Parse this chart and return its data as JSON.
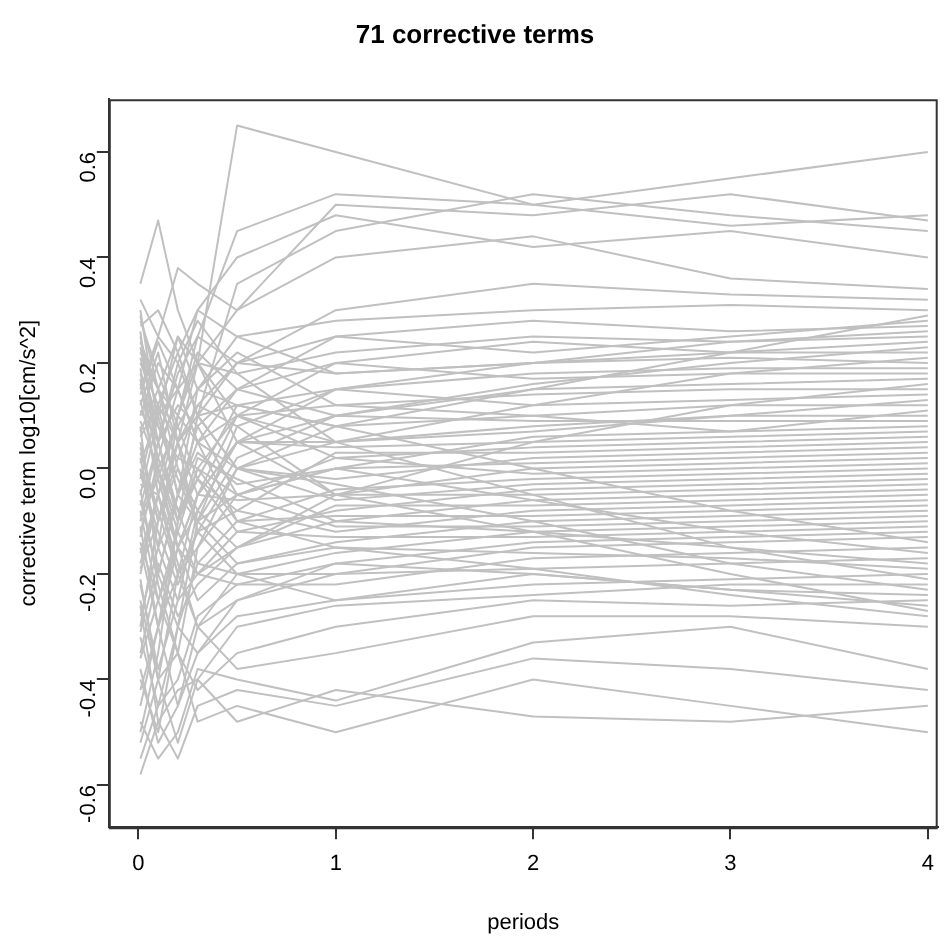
{
  "chart_data": {
    "type": "line",
    "title": "71 corrective terms",
    "xlabel": "periods",
    "ylabel": "corrective term log10[cm/s^2]",
    "x": [
      0.01,
      0.1,
      0.2,
      0.3,
      0.5,
      1,
      2,
      3,
      4
    ],
    "xlim": [
      -0.15,
      4.05
    ],
    "xticks": [
      0,
      1,
      2,
      3,
      4
    ],
    "ylim": [
      -0.68,
      0.7
    ],
    "yticks": [
      -0.6,
      -0.4,
      -0.2,
      {
        "value": 0,
        "label": "0.0"
      },
      0.2,
      0.4,
      0.6
    ],
    "grid": false,
    "legend": false,
    "marker": "none",
    "line_style": "solid",
    "series": [
      {
        "color": "#c0c0c0",
        "values": [
          0.35,
          0.47,
          0.3,
          0.2,
          0.65,
          0.6,
          0.5,
          0.55,
          0.6
        ]
      },
      {
        "color": "#c0c0c0",
        "values": [
          0.32,
          0.25,
          0.38,
          0.35,
          0.3,
          0.5,
          0.48,
          0.52,
          0.47
        ]
      },
      {
        "color": "#c0c0c0",
        "values": [
          0.22,
          0.15,
          0.1,
          0.25,
          0.45,
          0.52,
          0.5,
          0.46,
          0.48
        ]
      },
      {
        "color": "#c0c0c0",
        "values": [
          0.18,
          0.05,
          -0.1,
          0.1,
          0.35,
          0.45,
          0.52,
          0.48,
          0.45
        ]
      },
      {
        "color": "#c0c0c0",
        "values": [
          0.1,
          0.2,
          0.15,
          0.3,
          0.4,
          0.48,
          0.42,
          0.45,
          0.4
        ]
      },
      {
        "color": "#c0c0c0",
        "values": [
          0.05,
          -0.1,
          0.05,
          0.2,
          0.3,
          0.4,
          0.44,
          0.36,
          0.34
        ]
      },
      {
        "color": "#c0c0c0",
        "values": [
          0.15,
          0.25,
          0.2,
          0.1,
          0.2,
          0.3,
          0.35,
          0.33,
          0.32
        ]
      },
      {
        "color": "#c0c0c0",
        "values": [
          -0.05,
          0.1,
          0.25,
          0.15,
          0.25,
          0.28,
          0.3,
          0.31,
          0.3
        ]
      },
      {
        "color": "#c0c0c0",
        "values": [
          0.2,
          0.12,
          -0.05,
          0.08,
          0.15,
          0.25,
          0.28,
          0.26,
          0.27
        ]
      },
      {
        "color": "#c0c0c0",
        "values": [
          0.0,
          -0.15,
          0.1,
          0.2,
          0.18,
          0.22,
          0.25,
          0.24,
          0.25
        ]
      },
      {
        "color": "#c0c0c0",
        "values": [
          0.12,
          0.22,
          0.05,
          -0.05,
          0.1,
          0.2,
          0.24,
          0.22,
          0.22
        ]
      },
      {
        "color": "#c0c0c0",
        "values": [
          -0.1,
          0.05,
          0.18,
          0.25,
          0.2,
          0.18,
          0.2,
          0.21,
          0.2
        ]
      },
      {
        "color": "#c0c0c0",
        "values": [
          0.08,
          -0.2,
          -0.05,
          0.15,
          0.12,
          0.15,
          0.18,
          0.19,
          0.19
        ]
      },
      {
        "color": "#c0c0c0",
        "values": [
          -0.2,
          -0.05,
          0.1,
          0.05,
          0.15,
          0.2,
          0.17,
          0.18,
          0.18
        ]
      },
      {
        "color": "#c0c0c0",
        "values": [
          0.25,
          0.1,
          0.15,
          0.2,
          0.05,
          0.1,
          0.15,
          0.16,
          0.17
        ]
      },
      {
        "color": "#c0c0c0",
        "values": [
          -0.15,
          -0.3,
          -0.1,
          0.0,
          0.1,
          0.12,
          0.14,
          0.15,
          0.15
        ]
      },
      {
        "color": "#c0c0c0",
        "values": [
          0.07,
          0.15,
          0.0,
          -0.1,
          0.08,
          0.15,
          0.12,
          0.13,
          0.14
        ]
      },
      {
        "color": "#c0c0c0",
        "values": [
          -0.3,
          -0.1,
          0.05,
          0.1,
          0.0,
          0.08,
          0.1,
          0.12,
          0.12
        ]
      },
      {
        "color": "#c0c0c0",
        "values": [
          0.19,
          0.0,
          -0.15,
          -0.05,
          0.05,
          0.05,
          0.08,
          0.1,
          0.1
        ]
      },
      {
        "color": "#c0c0c0",
        "values": [
          -0.06,
          -0.2,
          -0.3,
          -0.1,
          0.02,
          0.1,
          0.09,
          0.09,
          0.09
        ]
      },
      {
        "color": "#c0c0c0",
        "values": [
          0.11,
          0.05,
          0.12,
          0.08,
          -0.05,
          0.0,
          0.06,
          0.07,
          0.08
        ]
      },
      {
        "color": "#c0c0c0",
        "values": [
          -0.25,
          -0.4,
          -0.2,
          -0.05,
          0.05,
          0.04,
          0.05,
          0.06,
          0.07
        ]
      },
      {
        "color": "#c0c0c0",
        "values": [
          0.01,
          0.1,
          -0.05,
          0.05,
          0.1,
          0.02,
          0.04,
          0.05,
          0.06
        ]
      },
      {
        "color": "#c0c0c0",
        "values": [
          -0.12,
          0.0,
          0.08,
          -0.02,
          -0.08,
          0.03,
          0.03,
          0.04,
          0.05
        ]
      },
      {
        "color": "#c0c0c0",
        "values": [
          0.17,
          -0.05,
          -0.2,
          -0.15,
          0.0,
          -0.02,
          0.02,
          0.03,
          0.04
        ]
      },
      {
        "color": "#c0c0c0",
        "values": [
          -0.35,
          -0.2,
          -0.05,
          0.03,
          -0.03,
          0.0,
          0.01,
          0.02,
          0.03
        ]
      },
      {
        "color": "#c0c0c0",
        "values": [
          0.04,
          -0.1,
          0.0,
          -0.08,
          0.05,
          -0.05,
          0.0,
          0.01,
          0.02
        ]
      },
      {
        "color": "#c0c0c0",
        "values": [
          -0.08,
          -0.25,
          -0.35,
          -0.15,
          -0.05,
          0.02,
          -0.01,
          0.0,
          0.01
        ]
      },
      {
        "color": "#c0c0c0",
        "values": [
          0.21,
          0.08,
          0.02,
          0.0,
          -0.1,
          -0.04,
          -0.02,
          -0.01,
          0.0
        ]
      },
      {
        "color": "#c0c0c0",
        "values": [
          -0.18,
          -0.05,
          0.05,
          0.1,
          0.0,
          -0.06,
          -0.03,
          -0.02,
          -0.01
        ]
      },
      {
        "color": "#c0c0c0",
        "values": [
          0.02,
          -0.15,
          -0.25,
          -0.2,
          -0.12,
          -0.08,
          -0.04,
          -0.03,
          -0.02
        ]
      },
      {
        "color": "#c0c0c0",
        "values": [
          -0.45,
          -0.3,
          -0.15,
          -0.05,
          -0.06,
          -0.05,
          -0.05,
          -0.04,
          -0.03
        ]
      },
      {
        "color": "#c0c0c0",
        "values": [
          0.09,
          0.0,
          -0.1,
          0.02,
          -0.02,
          -0.1,
          -0.06,
          -0.05,
          -0.04
        ]
      },
      {
        "color": "#c0c0c0",
        "values": [
          -0.22,
          -0.38,
          -0.25,
          -0.08,
          -0.15,
          -0.07,
          -0.07,
          -0.06,
          -0.05
        ]
      },
      {
        "color": "#c0c0c0",
        "values": [
          -0.02,
          0.12,
          0.05,
          -0.12,
          -0.08,
          -0.12,
          -0.08,
          -0.07,
          -0.06
        ]
      },
      {
        "color": "#c0c0c0",
        "values": [
          -0.4,
          -0.5,
          -0.3,
          -0.18,
          -0.1,
          -0.09,
          -0.09,
          -0.08,
          -0.07
        ]
      },
      {
        "color": "#c0c0c0",
        "values": [
          0.13,
          -0.02,
          -0.15,
          -0.25,
          -0.18,
          -0.14,
          -0.1,
          -0.09,
          -0.08
        ]
      },
      {
        "color": "#c0c0c0",
        "values": [
          -0.28,
          -0.15,
          -0.05,
          -0.1,
          -0.05,
          -0.11,
          -0.11,
          -0.1,
          -0.09
        ]
      },
      {
        "color": "#c0c0c0",
        "values": [
          0.03,
          -0.08,
          -0.2,
          -0.3,
          -0.2,
          -0.16,
          -0.12,
          -0.11,
          -0.1
        ]
      },
      {
        "color": "#c0c0c0",
        "values": [
          -0.5,
          -0.35,
          -0.1,
          -0.02,
          -0.12,
          -0.13,
          -0.13,
          -0.12,
          -0.11
        ]
      },
      {
        "color": "#c0c0c0",
        "values": [
          -0.11,
          -0.3,
          -0.45,
          -0.35,
          -0.25,
          -0.18,
          -0.14,
          -0.13,
          -0.12
        ]
      },
      {
        "color": "#c0c0c0",
        "values": [
          0.23,
          0.05,
          -0.08,
          -0.18,
          -0.2,
          -0.2,
          -0.15,
          -0.14,
          -0.13
        ]
      },
      {
        "color": "#c0c0c0",
        "values": [
          -0.32,
          -0.45,
          -0.4,
          -0.28,
          -0.22,
          -0.22,
          -0.17,
          -0.16,
          -0.15
        ]
      },
      {
        "color": "#c0c0c0",
        "values": [
          -0.16,
          -0.05,
          -0.18,
          -0.3,
          -0.25,
          -0.2,
          -0.19,
          -0.18,
          -0.17
        ]
      },
      {
        "color": "#c0c0c0",
        "values": [
          -0.55,
          -0.45,
          -0.3,
          -0.35,
          -0.28,
          -0.25,
          -0.22,
          -0.21,
          -0.2
        ]
      },
      {
        "color": "#c0c0c0",
        "values": [
          -0.21,
          -0.4,
          -0.52,
          -0.4,
          -0.3,
          -0.26,
          -0.24,
          -0.22,
          -0.22
        ]
      },
      {
        "color": "#c0c0c0",
        "values": [
          -0.04,
          -0.22,
          -0.35,
          -0.42,
          -0.35,
          -0.3,
          -0.25,
          -0.26,
          -0.25
        ]
      },
      {
        "color": "#c0c0c0",
        "values": [
          -0.38,
          -0.52,
          -0.45,
          -0.3,
          -0.38,
          -0.35,
          -0.28,
          -0.28,
          -0.3
        ]
      },
      {
        "color": "#c0c0c0",
        "values": [
          -0.48,
          -0.55,
          -0.5,
          -0.38,
          -0.4,
          -0.44,
          -0.33,
          -0.3,
          -0.38
        ]
      },
      {
        "color": "#c0c0c0",
        "values": [
          -0.26,
          -0.48,
          -0.55,
          -0.45,
          -0.42,
          -0.45,
          -0.36,
          -0.38,
          -0.42
        ]
      },
      {
        "color": "#c0c0c0",
        "values": [
          -0.52,
          -0.4,
          -0.35,
          -0.48,
          -0.45,
          -0.5,
          -0.4,
          -0.45,
          -0.5
        ]
      },
      {
        "color": "#c0c0c0",
        "values": [
          -0.58,
          -0.48,
          -0.42,
          -0.4,
          -0.48,
          -0.42,
          -0.47,
          -0.48,
          -0.45
        ]
      },
      {
        "color": "#c0c0c0",
        "values": [
          0.28,
          0.18,
          0.08,
          0.15,
          0.22,
          0.12,
          0.1,
          0.07,
          0.11
        ]
      },
      {
        "color": "#c0c0c0",
        "values": [
          0.27,
          0.3,
          0.22,
          0.1,
          0.12,
          0.08,
          0.0,
          -0.08,
          -0.14
        ]
      },
      {
        "color": "#c0c0c0",
        "values": [
          -0.07,
          0.05,
          0.2,
          0.28,
          0.18,
          0.05,
          0.07,
          0.1,
          0.13
        ]
      },
      {
        "color": "#c0c0c0",
        "values": [
          0.26,
          0.0,
          -0.12,
          -0.2,
          -0.15,
          -0.05,
          0.05,
          0.12,
          0.16
        ]
      },
      {
        "color": "#c0c0c0",
        "values": [
          -0.14,
          -0.25,
          -0.12,
          0.0,
          -0.05,
          0.0,
          -0.06,
          -0.12,
          -0.16
        ]
      },
      {
        "color": "#c0c0c0",
        "values": [
          0.29,
          0.15,
          0.25,
          0.2,
          0.1,
          0.05,
          0.12,
          0.18,
          0.21
        ]
      },
      {
        "color": "#c0c0c0",
        "values": [
          -0.31,
          -0.18,
          -0.28,
          -0.22,
          -0.15,
          -0.1,
          -0.12,
          -0.15,
          -0.18
        ]
      },
      {
        "color": "#c0c0c0",
        "values": [
          0.3,
          0.08,
          -0.02,
          -0.1,
          -0.18,
          -0.15,
          -0.16,
          -0.17,
          -0.19
        ]
      },
      {
        "color": "#c0c0c0",
        "values": [
          -0.09,
          -0.02,
          0.1,
          0.22,
          0.15,
          0.1,
          0.16,
          0.2,
          0.23
        ]
      },
      {
        "color": "#c0c0c0",
        "values": [
          -0.01,
          -0.12,
          -0.22,
          -0.12,
          0.0,
          0.05,
          -0.05,
          -0.15,
          -0.21
        ]
      },
      {
        "color": "#c0c0c0",
        "values": [
          0.14,
          0.24,
          0.15,
          0.05,
          0.0,
          -0.03,
          -0.1,
          -0.18,
          -0.23
        ]
      },
      {
        "color": "#c0c0c0",
        "values": [
          -0.36,
          -0.25,
          -0.15,
          -0.2,
          -0.22,
          -0.18,
          -0.2,
          -0.23,
          -0.24
        ]
      },
      {
        "color": "#c0c0c0",
        "values": [
          0.06,
          0.12,
          0.22,
          0.3,
          0.25,
          0.18,
          0.2,
          0.24,
          0.26
        ]
      },
      {
        "color": "#c0c0c0",
        "values": [
          -0.42,
          -0.3,
          -0.2,
          -0.12,
          -0.2,
          -0.25,
          -0.2,
          -0.23,
          -0.26
        ]
      },
      {
        "color": "#c0c0c0",
        "values": [
          0.24,
          0.15,
          0.05,
          0.12,
          0.2,
          0.25,
          0.22,
          0.25,
          0.28
        ]
      },
      {
        "color": "#c0c0c0",
        "values": [
          -0.19,
          -0.1,
          0.02,
          0.12,
          0.08,
          -0.05,
          -0.12,
          -0.2,
          -0.27
        ]
      },
      {
        "color": "#c0c0c0",
        "values": [
          -0.03,
          -0.05,
          -0.15,
          -0.08,
          0.05,
          0.15,
          0.2,
          0.22,
          0.24
        ]
      },
      {
        "color": "#c0c0c0",
        "values": [
          -0.13,
          0.02,
          0.15,
          0.05,
          -0.1,
          -0.15,
          -0.19,
          -0.24,
          -0.28
        ]
      },
      {
        "color": "#c0c0c0",
        "values": [
          0.16,
          0.02,
          -0.08,
          -0.02,
          0.12,
          0.08,
          0.15,
          0.22,
          0.29
        ]
      }
    ]
  }
}
